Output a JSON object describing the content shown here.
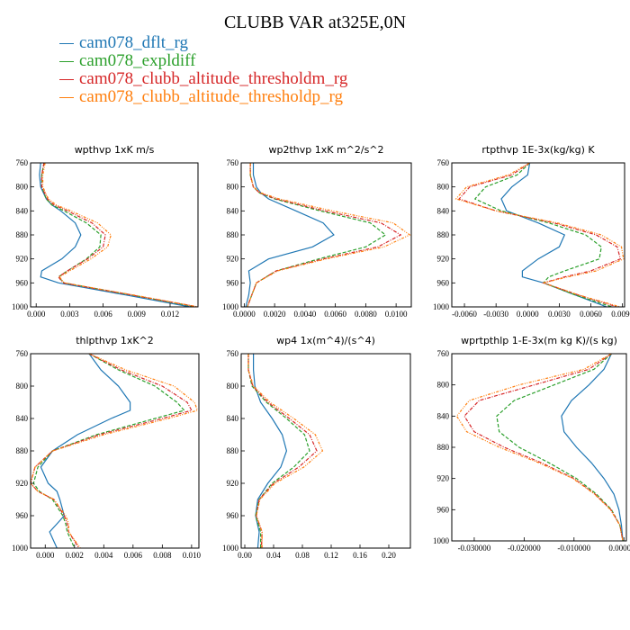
{
  "title": "CLUBB VAR at325E,0N",
  "legend": [
    {
      "name": "cam078_dflt_rg",
      "color": "#1f77b4"
    },
    {
      "name": "cam078_expldiff",
      "color": "#2ca02c"
    },
    {
      "name": "cam078_clubb_altitude_thresholdm_rg",
      "color": "#d62728"
    },
    {
      "name": "cam078_clubb_altitude_thresholdp_rg",
      "color": "#ff7f0e"
    }
  ],
  "chart_data": [
    {
      "type": "line",
      "title": "wpthvp  1xK m/s",
      "xlim": [
        -0.0005,
        0.0145
      ],
      "ylim": [
        760,
        1000
      ],
      "y_inverted": true,
      "xticks": [
        "0.000",
        "0.003",
        "0.006",
        "0.009",
        "0.012"
      ],
      "xtick_values": [
        0,
        0.003,
        0.006,
        0.009,
        0.012
      ],
      "yticks": [
        760,
        800,
        840,
        880,
        920,
        960,
        1000
      ],
      "y": [
        760,
        780,
        800,
        820,
        830,
        840,
        860,
        880,
        900,
        920,
        940,
        950,
        960,
        980,
        1000
      ],
      "series": [
        {
          "name": "cam078_dflt_rg",
          "values": [
            0.0004,
            0.0003,
            0.0004,
            0.0009,
            0.0014,
            0.0022,
            0.0035,
            0.004,
            0.0035,
            0.0023,
            0.0005,
            0.0004,
            0.002,
            0.008,
            0.0138
          ]
        },
        {
          "name": "cam078_expldiff",
          "values": [
            0.0007,
            0.0005,
            0.0005,
            0.0009,
            0.0014,
            0.0025,
            0.0045,
            0.0058,
            0.0057,
            0.0045,
            0.0028,
            0.002,
            0.0025,
            0.0085,
            0.0143
          ]
        },
        {
          "name": "cam078_clubb_altitude_thresholdm_rg",
          "values": [
            0.0007,
            0.0005,
            0.0005,
            0.001,
            0.0016,
            0.0028,
            0.005,
            0.0062,
            0.006,
            0.0046,
            0.0028,
            0.002,
            0.0024,
            0.0085,
            0.0145
          ]
        },
        {
          "name": "cam078_clubb_altitude_thresholdp_rg",
          "values": [
            0.0008,
            0.0006,
            0.0006,
            0.0011,
            0.0018,
            0.0031,
            0.0055,
            0.0067,
            0.0064,
            0.0049,
            0.003,
            0.0021,
            0.0025,
            0.0087,
            0.0145
          ]
        }
      ]
    },
    {
      "type": "line",
      "title": "wp2thvp  1xK m^2/s^2",
      "xlim": [
        -0.0002,
        0.011
      ],
      "ylim": [
        760,
        1000
      ],
      "y_inverted": true,
      "xticks": [
        "0.0000",
        "0.0020",
        "0.0040",
        "0.0060",
        "0.0080",
        "0.0100"
      ],
      "xtick_values": [
        0,
        0.002,
        0.004,
        0.006,
        0.008,
        0.01
      ],
      "yticks": [
        760,
        800,
        840,
        880,
        920,
        960,
        1000
      ],
      "y": [
        760,
        780,
        800,
        810,
        820,
        840,
        860,
        880,
        900,
        920,
        940,
        960,
        980,
        1000
      ],
      "series": [
        {
          "name": "cam078_dflt_rg",
          "values": [
            0.0006,
            0.0006,
            0.0008,
            0.0011,
            0.0016,
            0.0034,
            0.0052,
            0.0059,
            0.0045,
            0.0016,
            0.0003,
            0.0004,
            0.0003,
            0.0001
          ]
        },
        {
          "name": "cam078_expldiff",
          "values": [
            0.0004,
            0.0004,
            0.0006,
            0.001,
            0.002,
            0.005,
            0.0083,
            0.0093,
            0.008,
            0.0049,
            0.0021,
            0.0008,
            0.0005,
            0.0002
          ]
        },
        {
          "name": "cam078_clubb_altitude_thresholdm_rg",
          "values": [
            0.0004,
            0.0004,
            0.0006,
            0.001,
            0.0021,
            0.0053,
            0.009,
            0.0103,
            0.0088,
            0.0052,
            0.0021,
            0.0008,
            0.0005,
            0.0002
          ]
        },
        {
          "name": "cam078_clubb_altitude_thresholdp_rg",
          "values": [
            0.0004,
            0.0004,
            0.0006,
            0.0011,
            0.0023,
            0.0058,
            0.0098,
            0.0109,
            0.0092,
            0.0054,
            0.0022,
            0.0008,
            0.0005,
            0.0002
          ]
        }
      ]
    },
    {
      "type": "line",
      "title": "rtpthvp  1E-3x(kg/kg) K",
      "xlim": [
        -0.0072,
        0.0092
      ],
      "ylim": [
        760,
        1000
      ],
      "y_inverted": true,
      "xticks": [
        "-0.0060",
        "-0.0030",
        "0.0000",
        "0.0030",
        "0.0060",
        "0.0090"
      ],
      "xtick_values": [
        -0.006,
        -0.003,
        0,
        0.003,
        0.006,
        0.009
      ],
      "yticks": [
        760,
        800,
        840,
        880,
        920,
        960,
        1000
      ],
      "y": [
        760,
        780,
        800,
        820,
        840,
        860,
        880,
        900,
        920,
        940,
        950,
        960,
        980,
        1000
      ],
      "series": [
        {
          "name": "cam078_dflt_rg",
          "values": [
            0.0002,
            0.0,
            -0.0015,
            -0.0025,
            -0.002,
            0.001,
            0.0035,
            0.003,
            0.001,
            -0.0005,
            -0.0005,
            0.0015,
            0.0045,
            0.0075
          ]
        },
        {
          "name": "cam078_expldiff",
          "values": [
            0.0002,
            -0.001,
            -0.004,
            -0.005,
            -0.0025,
            0.002,
            0.0055,
            0.007,
            0.0068,
            0.0035,
            0.002,
            0.0015,
            0.0045,
            0.008
          ]
        },
        {
          "name": "cam078_clubb_altitude_thresholdm_rg",
          "values": [
            0.0002,
            -0.0015,
            -0.0055,
            -0.0065,
            -0.003,
            0.0025,
            0.0065,
            0.0085,
            0.0088,
            0.006,
            0.0035,
            0.0015,
            0.0048,
            0.0085
          ]
        },
        {
          "name": "cam078_clubb_altitude_thresholdp_rg",
          "values": [
            0.0002,
            -0.0018,
            -0.0058,
            -0.0068,
            -0.003,
            0.0028,
            0.007,
            0.0089,
            0.0091,
            0.0065,
            0.0038,
            0.0015,
            0.0048,
            0.0088
          ]
        }
      ]
    },
    {
      "type": "line",
      "title": "thlpthvp  1xK^2",
      "xlim": [
        -0.001,
        0.0105
      ],
      "ylim": [
        760,
        1000
      ],
      "y_inverted": true,
      "xticks": [
        "0.000",
        "0.002",
        "0.004",
        "0.006",
        "0.008",
        "0.010"
      ],
      "xtick_values": [
        0,
        0.002,
        0.004,
        0.006,
        0.008,
        0.01
      ],
      "yticks": [
        760,
        800,
        840,
        880,
        920,
        960,
        1000
      ],
      "y": [
        760,
        780,
        800,
        820,
        830,
        840,
        860,
        880,
        900,
        920,
        930,
        940,
        960,
        970,
        980,
        1000
      ],
      "series": [
        {
          "name": "cam078_dflt_rg",
          "values": [
            0.003,
            0.0038,
            0.005,
            0.0058,
            0.0058,
            0.0045,
            0.0022,
            0.0005,
            -0.0003,
            0.0002,
            0.0008,
            0.001,
            0.0013,
            0.0008,
            0.0003,
            0.0008
          ]
        },
        {
          "name": "cam078_expldiff",
          "values": [
            0.003,
            0.005,
            0.0075,
            0.009,
            0.0095,
            0.0075,
            0.0035,
            0.0005,
            -0.0005,
            -0.0008,
            -0.0004,
            0.0005,
            0.0012,
            0.0014,
            0.0015,
            0.002
          ]
        },
        {
          "name": "cam078_clubb_altitude_thresholdm_rg",
          "values": [
            0.003,
            0.0052,
            0.008,
            0.0097,
            0.01,
            0.008,
            0.0037,
            0.0005,
            -0.0007,
            -0.001,
            -0.0005,
            0.0006,
            0.0013,
            0.0015,
            0.0016,
            0.0023
          ]
        },
        {
          "name": "cam078_clubb_altitude_thresholdp_rg",
          "values": [
            0.003,
            0.0055,
            0.0088,
            0.0102,
            0.0104,
            0.0084,
            0.004,
            0.0005,
            -0.0007,
            -0.001,
            -0.0005,
            0.0006,
            0.0014,
            0.0016,
            0.0016,
            0.0024
          ]
        }
      ]
    },
    {
      "type": "line",
      "title": "wp4  1x(m^4)/(s^4)",
      "xlim": [
        -0.005,
        0.23
      ],
      "ylim": [
        760,
        1000
      ],
      "y_inverted": true,
      "xticks": [
        "0.00",
        "0.04",
        "0.08",
        "0.12",
        "0.16",
        "0.20"
      ],
      "xtick_values": [
        0,
        0.04,
        0.08,
        0.12,
        0.16,
        0.2
      ],
      "yticks": [
        760,
        800,
        840,
        880,
        920,
        960,
        1000
      ],
      "y": [
        760,
        780,
        800,
        820,
        840,
        860,
        880,
        900,
        920,
        940,
        960,
        980,
        1000
      ],
      "series": [
        {
          "name": "cam078_dflt_rg",
          "values": [
            0.012,
            0.012,
            0.014,
            0.022,
            0.038,
            0.052,
            0.058,
            0.05,
            0.032,
            0.018,
            0.015,
            0.02,
            0.018
          ]
        },
        {
          "name": "cam078_expldiff",
          "values": [
            0.005,
            0.005,
            0.01,
            0.03,
            0.058,
            0.083,
            0.09,
            0.068,
            0.038,
            0.02,
            0.015,
            0.022,
            0.022
          ]
        },
        {
          "name": "cam078_clubb_altitude_thresholdm_rg",
          "values": [
            0.005,
            0.005,
            0.011,
            0.032,
            0.062,
            0.09,
            0.1,
            0.075,
            0.04,
            0.02,
            0.016,
            0.024,
            0.023
          ]
        },
        {
          "name": "cam078_clubb_altitude_thresholdp_rg",
          "values": [
            0.005,
            0.005,
            0.012,
            0.035,
            0.068,
            0.098,
            0.108,
            0.082,
            0.042,
            0.021,
            0.016,
            0.024,
            0.024
          ]
        }
      ]
    },
    {
      "type": "line",
      "title": "wprtpthlp  1-E-3x(m kg K)/(s kg)",
      "xlim": [
        -0.0345,
        0.0005
      ],
      "ylim": [
        760,
        1000
      ],
      "y_inverted": true,
      "xticks": [
        "-0.030000",
        "-0.020000",
        "-0.010000",
        "0.000000"
      ],
      "xtick_values": [
        -0.03,
        -0.02,
        -0.01,
        0
      ],
      "yticks": [
        760,
        800,
        840,
        880,
        920,
        960,
        1000
      ],
      "y": [
        760,
        780,
        800,
        820,
        840,
        860,
        880,
        900,
        920,
        940,
        960,
        980,
        1000
      ],
      "series": [
        {
          "name": "cam078_dflt_rg",
          "values": [
            -0.0025,
            -0.004,
            -0.007,
            -0.0105,
            -0.0125,
            -0.012,
            -0.0095,
            -0.0065,
            -0.004,
            -0.002,
            -0.001,
            -0.0005,
            -0.0002
          ]
        },
        {
          "name": "cam078_expldiff",
          "values": [
            -0.0025,
            -0.006,
            -0.014,
            -0.022,
            -0.0255,
            -0.025,
            -0.021,
            -0.015,
            -0.0095,
            -0.0055,
            -0.0025,
            -0.0008,
            -0.0002
          ]
        },
        {
          "name": "cam078_clubb_altitude_thresholdm_rg",
          "values": [
            -0.0025,
            -0.007,
            -0.018,
            -0.029,
            -0.032,
            -0.03,
            -0.024,
            -0.0165,
            -0.01,
            -0.0058,
            -0.0026,
            -0.0008,
            -0.0002
          ]
        },
        {
          "name": "cam078_clubb_altitude_thresholdp_rg",
          "values": [
            -0.0025,
            -0.008,
            -0.021,
            -0.031,
            -0.0335,
            -0.0315,
            -0.025,
            -0.017,
            -0.0102,
            -0.0059,
            -0.0027,
            -0.0008,
            -0.0002
          ]
        }
      ]
    }
  ]
}
